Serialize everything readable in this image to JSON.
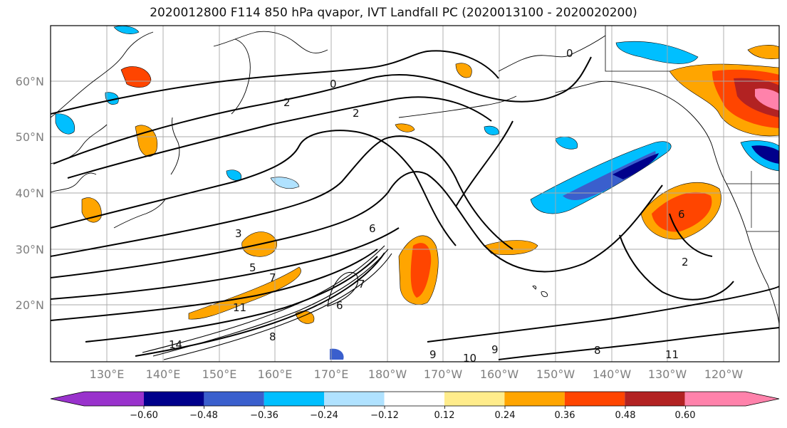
{
  "title": "2020012800 F114 850 hPa qvapor, IVT Landfall PC (2020013100 - 2020020200)",
  "map": {
    "lat_labels": [
      "60°N",
      "50°N",
      "40°N",
      "30°N",
      "20°N"
    ],
    "lon_labels": [
      "130°E",
      "140°E",
      "150°E",
      "160°E",
      "170°E",
      "180°W",
      "170°W",
      "160°W",
      "150°W",
      "140°W",
      "130°W",
      "120°W"
    ],
    "contour_labels": [
      "0",
      "0",
      "2",
      "3",
      "5",
      "6",
      "7",
      "7",
      "6",
      "8",
      "9",
      "11",
      "14",
      "2",
      "6",
      "2",
      "8",
      "9",
      "10",
      "11"
    ]
  },
  "colorbar": {
    "colors": [
      "#9932CC",
      "#00008B",
      "#3A5FCD",
      "#00BFFF",
      "#B0E2FF",
      "#FFFFFF",
      "#FFEC8B",
      "#FFA500",
      "#FF4500",
      "#B22222",
      "#FF82AB"
    ],
    "tick_labels": [
      "−0.60",
      "−0.48",
      "−0.36",
      "−0.24",
      "−0.12",
      "0.12",
      "0.24",
      "0.36",
      "0.48",
      "0.60"
    ]
  }
}
